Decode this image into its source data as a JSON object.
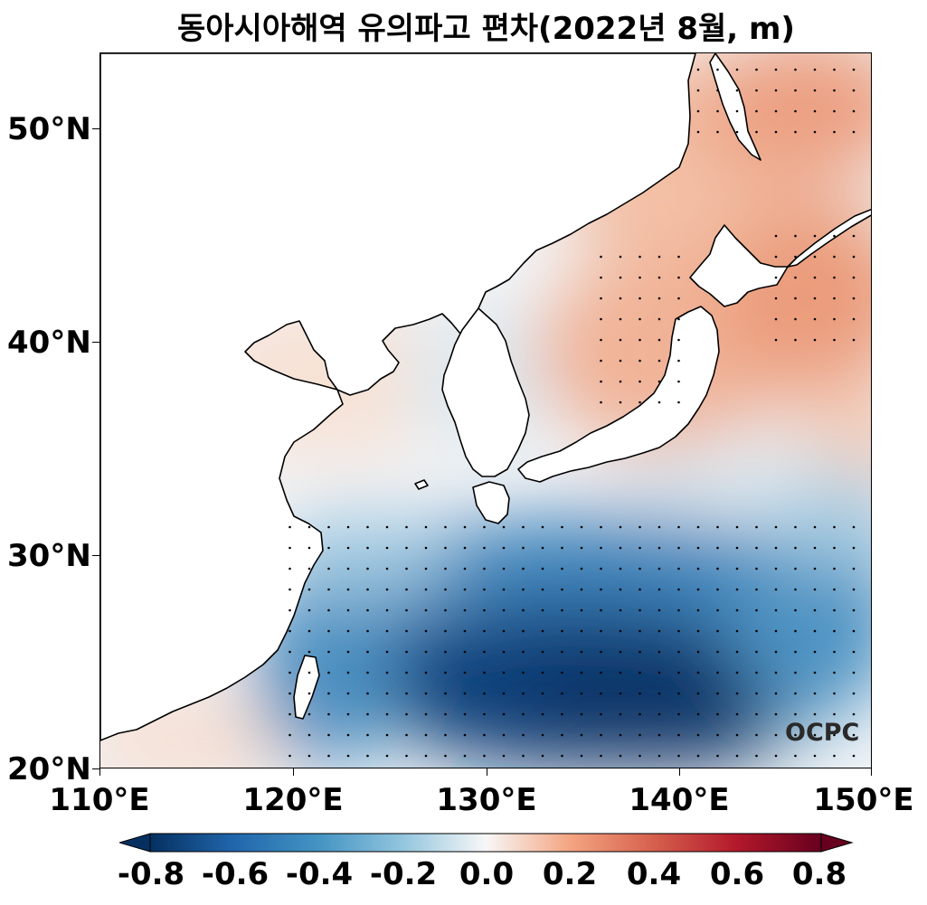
{
  "title": "동아시아해역 유의파고 편차(2022년 8월, m)",
  "logo_text": "OCPC",
  "axes": {
    "y_ticks": [
      "20°N",
      "30°N",
      "40°N",
      "50°N"
    ],
    "x_ticks": [
      "110°E",
      "120°E",
      "130°E",
      "140°E",
      "150°E"
    ]
  },
  "colorbar": {
    "colormap": "RdBu_r",
    "range": [
      -0.8,
      0.8
    ],
    "extend": "both",
    "labels": [
      "-0.8",
      "-0.6",
      "-0.4",
      "-0.2",
      "0.0",
      "0.2",
      "0.4",
      "0.6",
      "0.8"
    ]
  },
  "map": {
    "lon_range": [
      110,
      150
    ],
    "lat_range": [
      20,
      53.5
    ],
    "colors": {
      "land": "#ffffff",
      "coast": "#000000",
      "stipple": "#000000"
    }
  }
}
